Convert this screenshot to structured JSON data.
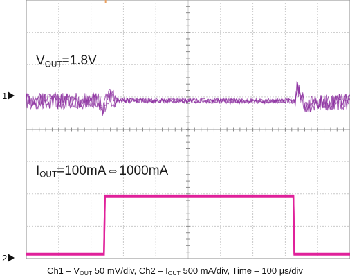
{
  "chart_data": {
    "type": "line",
    "title": "",
    "xlabel": "",
    "ylabel": "",
    "x_div_count": 10,
    "y_div_count": 8,
    "grid": true,
    "channels": [
      {
        "id": "ch1",
        "marker": "1",
        "color": "#8a2b9e",
        "quantity": "VOUT",
        "scale": "50 mV/div",
        "level": "1.8V",
        "points": [
          {
            "t_div": 0.0,
            "offset_div": 0.0
          },
          {
            "t_div": 2.3,
            "offset_div": 0.0
          },
          {
            "t_div": 2.35,
            "offset_div": -0.45
          },
          {
            "t_div": 2.5,
            "offset_div": 0.15
          },
          {
            "t_div": 2.8,
            "offset_div": 0.02
          },
          {
            "t_div": 8.3,
            "offset_div": 0.0
          },
          {
            "t_div": 8.35,
            "offset_div": 0.45
          },
          {
            "t_div": 8.6,
            "offset_div": -0.1
          },
          {
            "t_div": 10.0,
            "offset_div": 0.0
          }
        ]
      },
      {
        "id": "ch2",
        "marker": "2",
        "color": "#e0219a",
        "quantity": "IOUT",
        "scale": "500 mA/div",
        "step_from": "100mA",
        "step_to": "1000mA",
        "points": [
          {
            "t_div": 0.0,
            "value_mA": 100
          },
          {
            "t_div": 2.4,
            "value_mA": 100
          },
          {
            "t_div": 2.43,
            "value_mA": 1000
          },
          {
            "t_div": 8.25,
            "value_mA": 1000
          },
          {
            "t_div": 8.28,
            "value_mA": 100
          },
          {
            "t_div": 10.0,
            "value_mA": 100
          }
        ]
      }
    ],
    "timebase": "100 µs/div"
  },
  "annotations": {
    "vout": {
      "sym": "V",
      "sub": "OUT",
      "value": "=1.8V"
    },
    "iout": {
      "sym": "I",
      "sub": "OUT",
      "value": "=100mA⇔1000mA"
    }
  },
  "caption": {
    "ch1_prefix": "Ch1 – V",
    "ch1_sub": "OUT",
    "ch1_scale": " 50 mV/div, Ch2 – I",
    "ch2_sub": "OUT",
    "ch2_rest": " 500 mA/div,  Time – 100 µs/div"
  },
  "markers": {
    "ch1": "1",
    "ch2": "2"
  },
  "colors": {
    "grid": "#c9c9c9",
    "frame": "#8a8a8a",
    "ch1": "#8a2b9e",
    "ch2": "#e0219a"
  }
}
